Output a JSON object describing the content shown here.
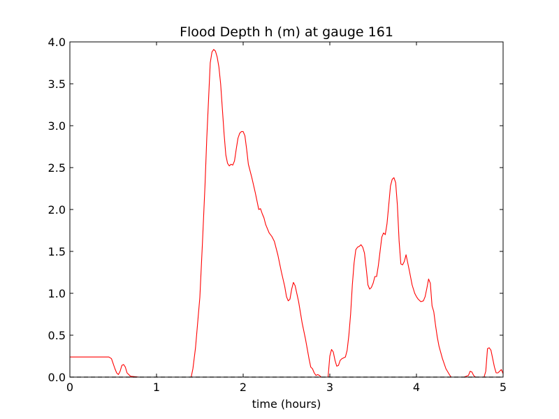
{
  "chart_data": {
    "type": "line",
    "title": "Flood Depth h (m) at gauge 161",
    "xlabel": "time (hours)",
    "ylabel": "",
    "xlim": [
      0,
      5
    ],
    "ylim": [
      0,
      4.0
    ],
    "x_ticks": [
      0,
      1,
      2,
      3,
      4,
      5
    ],
    "x_tick_labels": [
      "0",
      "1",
      "2",
      "3",
      "4",
      "5"
    ],
    "y_ticks": [
      0,
      0.5,
      1.0,
      1.5,
      2.0,
      2.5,
      3.0,
      3.5,
      4.0
    ],
    "y_tick_labels": [
      "0.0",
      "0.5",
      "1.0",
      "1.5",
      "2.0",
      "2.5",
      "3.0",
      "3.5",
      "4.0"
    ],
    "grid": false,
    "colors": {
      "series": "#ff0000",
      "zero_line": "#000000"
    },
    "series": [
      {
        "style": "solid",
        "color": "#ff0000",
        "x": [
          0,
          0.1,
          0.2,
          0.3,
          0.4,
          0.45,
          0.48,
          0.5,
          0.52,
          0.54,
          0.56,
          0.58,
          0.6,
          0.62,
          0.64,
          0.66,
          0.7,
          0.8,
          0.9,
          1.0,
          1.1,
          1.2,
          1.3,
          1.4,
          1.42,
          1.45,
          1.5,
          1.53,
          1.56,
          1.58,
          1.6,
          1.62,
          1.64,
          1.66,
          1.68,
          1.7,
          1.72,
          1.74,
          1.76,
          1.78,
          1.8,
          1.82,
          1.84,
          1.86,
          1.88,
          1.9,
          1.92,
          1.94,
          1.96,
          1.98,
          2.0,
          2.02,
          2.04,
          2.06,
          2.1,
          2.14,
          2.18,
          2.2,
          2.22,
          2.24,
          2.26,
          2.3,
          2.33,
          2.36,
          2.4,
          2.44,
          2.48,
          2.5,
          2.52,
          2.54,
          2.56,
          2.58,
          2.6,
          2.64,
          2.68,
          2.72,
          2.76,
          2.78,
          2.8,
          2.82,
          2.84,
          2.86,
          2.88,
          2.9,
          2.95,
          2.98,
          3.0,
          3.02,
          3.04,
          3.06,
          3.08,
          3.1,
          3.12,
          3.14,
          3.18,
          3.2,
          3.22,
          3.24,
          3.26,
          3.28,
          3.3,
          3.32,
          3.34,
          3.36,
          3.38,
          3.4,
          3.42,
          3.44,
          3.46,
          3.48,
          3.5,
          3.52,
          3.54,
          3.56,
          3.58,
          3.6,
          3.62,
          3.64,
          3.66,
          3.68,
          3.7,
          3.72,
          3.74,
          3.76,
          3.78,
          3.8,
          3.82,
          3.84,
          3.86,
          3.88,
          3.9,
          3.92,
          3.95,
          3.98,
          4.0,
          4.02,
          4.05,
          4.08,
          4.1,
          4.12,
          4.14,
          4.16,
          4.18,
          4.2,
          4.22,
          4.24,
          4.26,
          4.3,
          4.34,
          4.38,
          4.4,
          4.42,
          4.45,
          4.5,
          4.55,
          4.6,
          4.62,
          4.64,
          4.66,
          4.68,
          4.7,
          4.75,
          4.78,
          4.8,
          4.82,
          4.84,
          4.86,
          4.88,
          4.9,
          4.92,
          4.94,
          4.96,
          4.98,
          5.0
        ],
        "y": [
          0.24,
          0.24,
          0.24,
          0.24,
          0.24,
          0.24,
          0.22,
          0.16,
          0.1,
          0.05,
          0.03,
          0.07,
          0.14,
          0.15,
          0.12,
          0.05,
          0.01,
          0.0,
          0.0,
          0.0,
          0.0,
          0.0,
          0.0,
          0.0,
          0.1,
          0.35,
          0.95,
          1.6,
          2.3,
          2.85,
          3.3,
          3.75,
          3.88,
          3.91,
          3.89,
          3.82,
          3.7,
          3.5,
          3.2,
          2.9,
          2.65,
          2.55,
          2.52,
          2.54,
          2.53,
          2.58,
          2.72,
          2.85,
          2.91,
          2.93,
          2.93,
          2.88,
          2.72,
          2.54,
          2.38,
          2.2,
          2.0,
          2.01,
          1.95,
          1.9,
          1.82,
          1.72,
          1.68,
          1.62,
          1.46,
          1.26,
          1.08,
          0.96,
          0.91,
          0.93,
          1.05,
          1.13,
          1.09,
          0.9,
          0.65,
          0.45,
          0.22,
          0.12,
          0.1,
          0.05,
          0.02,
          0.03,
          0.02,
          0.0,
          0.0,
          0.0,
          0.25,
          0.33,
          0.3,
          0.2,
          0.13,
          0.14,
          0.2,
          0.22,
          0.24,
          0.32,
          0.5,
          0.75,
          1.1,
          1.36,
          1.52,
          1.55,
          1.56,
          1.58,
          1.55,
          1.48,
          1.3,
          1.1,
          1.05,
          1.07,
          1.12,
          1.2,
          1.2,
          1.33,
          1.5,
          1.67,
          1.72,
          1.7,
          1.83,
          2.05,
          2.28,
          2.36,
          2.38,
          2.32,
          2.05,
          1.62,
          1.35,
          1.34,
          1.38,
          1.46,
          1.36,
          1.26,
          1.1,
          1.0,
          0.96,
          0.93,
          0.9,
          0.91,
          0.96,
          1.06,
          1.17,
          1.12,
          0.85,
          0.78,
          0.62,
          0.48,
          0.37,
          0.22,
          0.1,
          0.03,
          0.0,
          0.0,
          0.0,
          0.0,
          0.0,
          0.02,
          0.07,
          0.06,
          0.02,
          0.0,
          0.0,
          0.0,
          0.0,
          0.07,
          0.34,
          0.35,
          0.32,
          0.22,
          0.12,
          0.05,
          0.05,
          0.07,
          0.09,
          0.04
        ]
      },
      {
        "style": "dashed",
        "color": "#000000",
        "x": [
          0,
          5
        ],
        "y": [
          0,
          0
        ]
      }
    ]
  }
}
